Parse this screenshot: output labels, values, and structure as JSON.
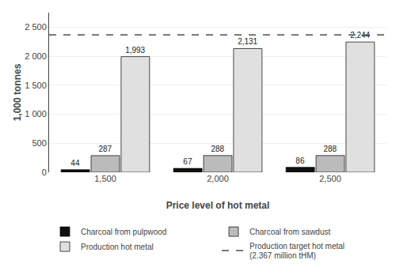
{
  "chart_data": {
    "type": "bar",
    "xlabel": "Price level of hot metal",
    "ylabel": "1,000 tonnes",
    "categories": [
      "1,500",
      "2,000",
      "2,500"
    ],
    "series": [
      {
        "name": "Charcoal from pulpwood",
        "color": "#111111",
        "values": [
          44,
          67,
          86
        ]
      },
      {
        "name": "Charcoal from sawdust",
        "color": "#bbbbbb",
        "values": [
          287,
          288,
          288
        ]
      },
      {
        "name": "Production hot metal",
        "color": "#e0e0e0",
        "values": [
          1993,
          2131,
          2244
        ],
        "value_labels": [
          "1,993",
          "2,131",
          "2,244"
        ]
      }
    ],
    "reference_lines": [
      {
        "name": "Production target hot metal\n(2.367 million tHM)",
        "value": 2367,
        "color": "#666666",
        "line_style": "dashed"
      }
    ],
    "ylim": [
      0,
      2750
    ],
    "yticks": [
      0,
      500,
      {
        "value": 1000,
        "label": "1 000"
      },
      {
        "value": 1500,
        "label": "1 500"
      },
      {
        "value": 2000,
        "label": "2 000"
      },
      {
        "value": 2500,
        "label": "2 500"
      }
    ],
    "grid": true,
    "legend": "bottom",
    "data_labels": true
  }
}
